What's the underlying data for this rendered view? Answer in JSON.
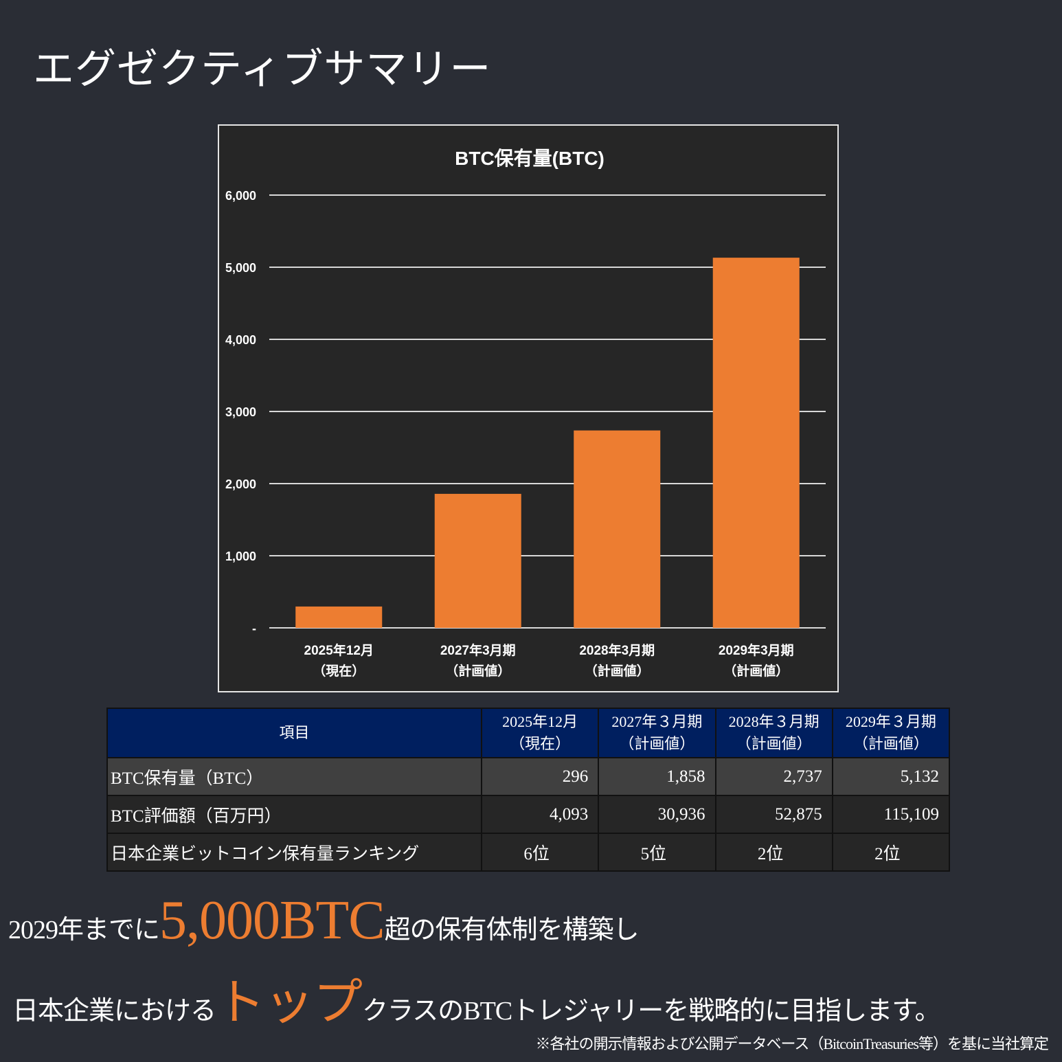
{
  "title": "エグゼクティブサマリー",
  "chart_data": {
    "type": "bar",
    "title": "BTC保有量(BTC)",
    "categories": [
      "2025年12月\n（現在）",
      "2027年3月期\n（計画値）",
      "2028年3月期\n（計画値）",
      "2029年3月期\n（計画値）"
    ],
    "values": [
      296,
      1858,
      2737,
      5132
    ],
    "ylim": [
      0,
      6000
    ],
    "yticks": [
      "-",
      "1,000",
      "2,000",
      "3,000",
      "4,000",
      "5,000",
      "6,000"
    ],
    "grid": true,
    "bar_color": "#ed7d31"
  },
  "table": {
    "headers": [
      "項目",
      "2025年12月\n（現在）",
      "2027年３月期\n（計画値）",
      "2028年３月期\n（計画値）",
      "2029年３月期\n（計画値）"
    ],
    "rows": [
      [
        "BTC保有量（BTC）",
        "296",
        "1,858",
        "2,737",
        "5,132"
      ],
      [
        "BTC評価額（百万円）",
        "4,093",
        "30,936",
        "52,875",
        "115,109"
      ],
      [
        "日本企業ビットコイン保有量ランキング",
        "6位",
        "5位",
        "2位",
        "2位"
      ]
    ]
  },
  "summary": {
    "line1": {
      "pre": "2029年までに",
      "highlight": "5,000BTC",
      "post": "超の保有体制を構築し"
    },
    "line2": {
      "pre": "日本企業における",
      "highlight": "トップ",
      "post": "クラスのBTCトレジャリーを戦略的に目指します。"
    }
  },
  "footnote": "※各社の開示情報および公開データベース（BitcoinTreasuries等）を基に当社算定",
  "colors": {
    "background": "#2a2d35",
    "accent": "#ed7d31",
    "header": "#001f5f"
  }
}
